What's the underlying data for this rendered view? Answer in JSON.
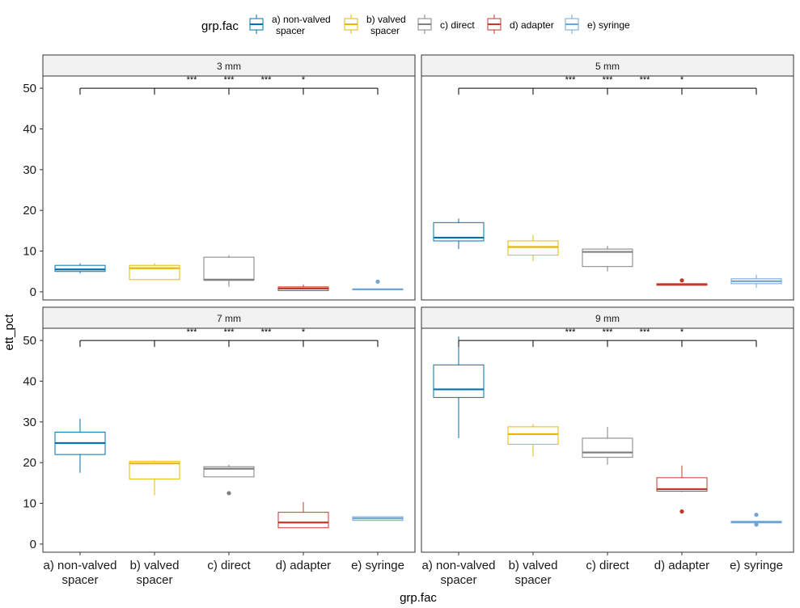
{
  "chart_data": {
    "type": "boxplot",
    "facet_variable": "diameter",
    "xlabel": "grp.fac",
    "ylabel": "ett_pct",
    "ylim": [
      -2,
      53
    ],
    "yticks": [
      0,
      10,
      20,
      30,
      40,
      50
    ],
    "legend": {
      "title": "grp.fac",
      "position": "top",
      "entries": [
        {
          "lines": [
            "a) non-valved",
            "spacer"
          ],
          "color": "#0072B2"
        },
        {
          "lines": [
            "b) valved",
            "spacer"
          ],
          "color": "#E6B800"
        },
        {
          "lines": [
            "c) direct"
          ],
          "color": "#808080"
        },
        {
          "lines": [
            "d) adapter"
          ],
          "color": "#C0392B"
        },
        {
          "lines": [
            "e) syringe"
          ],
          "color": "#6FA4D8"
        }
      ]
    },
    "categories": [
      {
        "lines": [
          "a) non-valved",
          "spacer"
        ]
      },
      {
        "lines": [
          "b) valved",
          "spacer"
        ]
      },
      {
        "lines": [
          "c) direct"
        ]
      },
      {
        "lines": [
          "d) adapter"
        ]
      },
      {
        "lines": [
          "e) syringe"
        ]
      }
    ],
    "significance": {
      "bracket_y": 50,
      "labels": [
        "***",
        "***",
        "***",
        "*"
      ]
    },
    "panels": [
      {
        "title": "3 mm",
        "boxes": [
          {
            "min": 4.5,
            "q1": 5.0,
            "median": 5.5,
            "q3": 6.5,
            "max": 7.0,
            "outliers": []
          },
          {
            "min": 3.0,
            "q1": 3.0,
            "median": 5.8,
            "q3": 6.5,
            "max": 7.0,
            "outliers": []
          },
          {
            "min": 1.2,
            "q1": 2.8,
            "median": 3.0,
            "q3": 8.5,
            "max": 9.0,
            "outliers": []
          },
          {
            "min": 0.2,
            "q1": 0.3,
            "median": 0.8,
            "q3": 1.2,
            "max": 1.8,
            "outliers": []
          },
          {
            "min": 0.5,
            "q1": 0.5,
            "median": 0.6,
            "q3": 0.7,
            "max": 0.7,
            "outliers": [
              2.5
            ]
          }
        ]
      },
      {
        "title": "5 mm",
        "boxes": [
          {
            "min": 10.5,
            "q1": 12.5,
            "median": 13.3,
            "q3": 17.0,
            "max": 18.0,
            "outliers": []
          },
          {
            "min": 7.5,
            "q1": 9.0,
            "median": 11.0,
            "q3": 12.5,
            "max": 14.0,
            "outliers": []
          },
          {
            "min": 5.0,
            "q1": 6.2,
            "median": 9.8,
            "q3": 10.5,
            "max": 11.3,
            "outliers": []
          },
          {
            "min": 1.6,
            "q1": 1.6,
            "median": 1.8,
            "q3": 2.0,
            "max": 2.0,
            "outliers": [
              2.8
            ]
          },
          {
            "min": 1.0,
            "q1": 2.0,
            "median": 2.6,
            "q3": 3.2,
            "max": 4.2,
            "outliers": []
          }
        ]
      },
      {
        "title": "7 mm",
        "boxes": [
          {
            "min": 17.5,
            "q1": 22.0,
            "median": 24.8,
            "q3": 27.5,
            "max": 30.8,
            "outliers": []
          },
          {
            "min": 12.0,
            "q1": 16.0,
            "median": 19.8,
            "q3": 20.3,
            "max": 20.5,
            "outliers": []
          },
          {
            "min": 16.5,
            "q1": 16.5,
            "median": 18.5,
            "q3": 19.0,
            "max": 19.5,
            "outliers": [
              12.5
            ]
          },
          {
            "min": 4.0,
            "q1": 4.0,
            "median": 5.3,
            "q3": 7.8,
            "max": 10.3,
            "outliers": []
          },
          {
            "min": 5.8,
            "q1": 5.8,
            "median": 6.3,
            "q3": 6.7,
            "max": 6.8,
            "outliers": []
          }
        ]
      },
      {
        "title": "9 mm",
        "boxes": [
          {
            "min": 26.0,
            "q1": 36.0,
            "median": 38.0,
            "q3": 44.0,
            "max": 51.0,
            "outliers": []
          },
          {
            "min": 21.5,
            "q1": 24.5,
            "median": 27.0,
            "q3": 28.8,
            "max": 29.5,
            "outliers": []
          },
          {
            "min": 19.5,
            "q1": 21.3,
            "median": 22.5,
            "q3": 26.0,
            "max": 28.8,
            "outliers": []
          },
          {
            "min": 12.8,
            "q1": 13.0,
            "median": 13.5,
            "q3": 16.3,
            "max": 19.3,
            "outliers": [
              8.0
            ]
          },
          {
            "min": 5.2,
            "q1": 5.2,
            "median": 5.4,
            "q3": 5.6,
            "max": 5.6,
            "outliers": [
              7.2,
              4.8
            ]
          }
        ]
      }
    ]
  }
}
